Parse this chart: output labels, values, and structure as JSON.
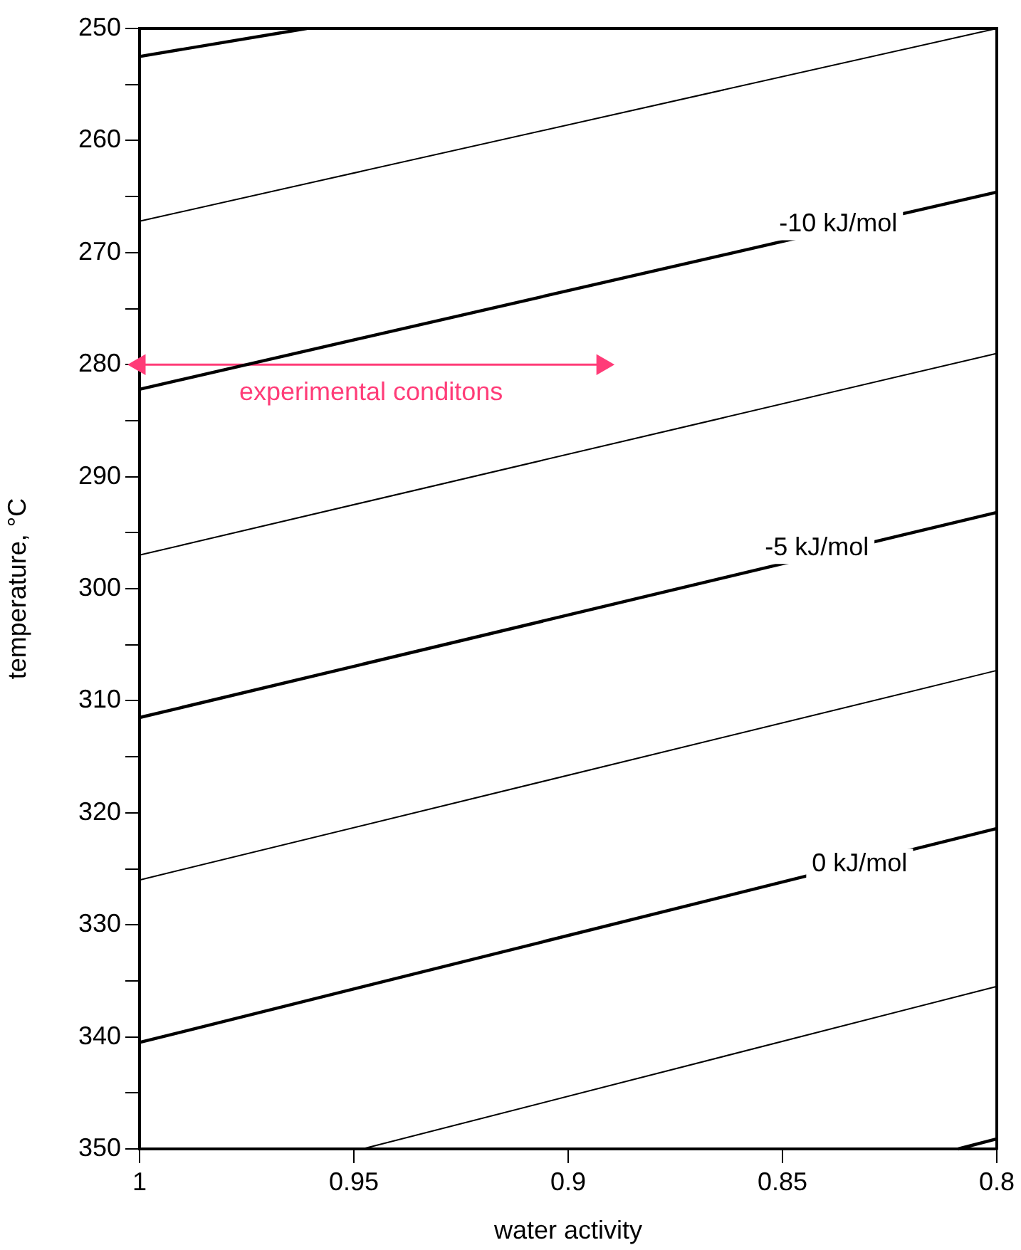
{
  "chart_data": {
    "type": "line",
    "xlabel": "water activity",
    "ylabel": "temperature, °C",
    "xlim": [
      1,
      0.8
    ],
    "xticks": [
      1,
      0.95,
      0.9,
      0.85,
      0.8
    ],
    "ylim": [
      350,
      250
    ],
    "yticks": [
      250,
      {
        "value": 255,
        "label": null
      },
      260,
      {
        "value": 265,
        "label": null
      },
      270,
      {
        "value": 275,
        "label": null
      },
      280,
      {
        "value": 285,
        "label": null
      },
      290,
      {
        "value": 295,
        "label": null
      },
      300,
      {
        "value": 305,
        "label": null
      },
      310,
      {
        "value": 315,
        "label": null
      },
      320,
      {
        "value": 325,
        "label": null
      },
      330,
      {
        "value": 335,
        "label": null
      },
      340,
      {
        "value": 345,
        "label": null
      },
      350
    ],
    "grid": false,
    "legend": false,
    "marker": "none",
    "line_style": "solid",
    "series": [
      {
        "color": "#000000",
        "x": [
          1,
          0.961
        ],
        "values": [
          252.5,
          250
        ]
      },
      {
        "color": "#000000",
        "x": [
          1,
          0.8
        ],
        "values": [
          267.2,
          250
        ]
      },
      {
        "color": "#000000",
        "x": [
          1,
          0.8
        ],
        "values": [
          282.2,
          264.6
        ]
      },
      {
        "color": "#000000",
        "x": [
          1,
          0.8
        ],
        "values": [
          297,
          279
        ]
      },
      {
        "color": "#000000",
        "x": [
          1,
          0.8
        ],
        "values": [
          311.5,
          293.2
        ]
      },
      {
        "color": "#000000",
        "x": [
          1,
          0.8
        ],
        "values": [
          326,
          307.3
        ]
      },
      {
        "color": "#000000",
        "x": [
          1,
          0.8
        ],
        "values": [
          340.5,
          321.4
        ]
      },
      {
        "color": "#000000",
        "x": [
          0.948,
          0.8
        ],
        "values": [
          350,
          335.5
        ]
      },
      {
        "color": "#000000",
        "x": [
          0.809,
          0.8
        ],
        "values": [
          350,
          349.1
        ]
      },
      {
        "color": "#ff3c78",
        "marker": "triangle",
        "x": [
          1,
          0.892
        ],
        "values": [
          280,
          280
        ]
      }
    ],
    "annotations": [
      {
        "text": "-10 kJ/mol",
        "x": 0.837,
        "y": 267.5
      },
      {
        "text": "-5 kJ/mol",
        "x": 0.842,
        "y": 296.4
      },
      {
        "text": "0 kJ/mol",
        "x": 0.832,
        "y": 324.6
      },
      "experimental conditons"
    ]
  }
}
